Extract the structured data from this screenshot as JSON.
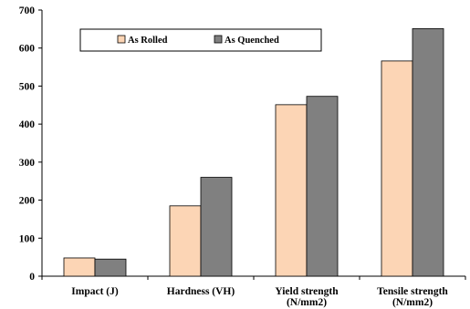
{
  "chart_data": {
    "type": "bar",
    "categories": [
      [
        "Impact (J)"
      ],
      [
        "Hardness (VH)"
      ],
      [
        "Yield strength",
        "(N/mm2)"
      ],
      [
        "Tensile strength",
        "(N/mm2)"
      ]
    ],
    "series": [
      {
        "name": "As Rolled",
        "values": [
          48,
          185,
          451,
          566
        ],
        "color": "#FCD5B5"
      },
      {
        "name": "As Quenched",
        "values": [
          45,
          260,
          473,
          651
        ],
        "color": "#808080"
      }
    ],
    "ylim": [
      0,
      700
    ],
    "yticks": [
      0,
      100,
      200,
      300,
      400,
      500,
      600,
      700
    ],
    "grid": false,
    "legend_position": "top-left",
    "legend_orientation": "horizontal"
  }
}
